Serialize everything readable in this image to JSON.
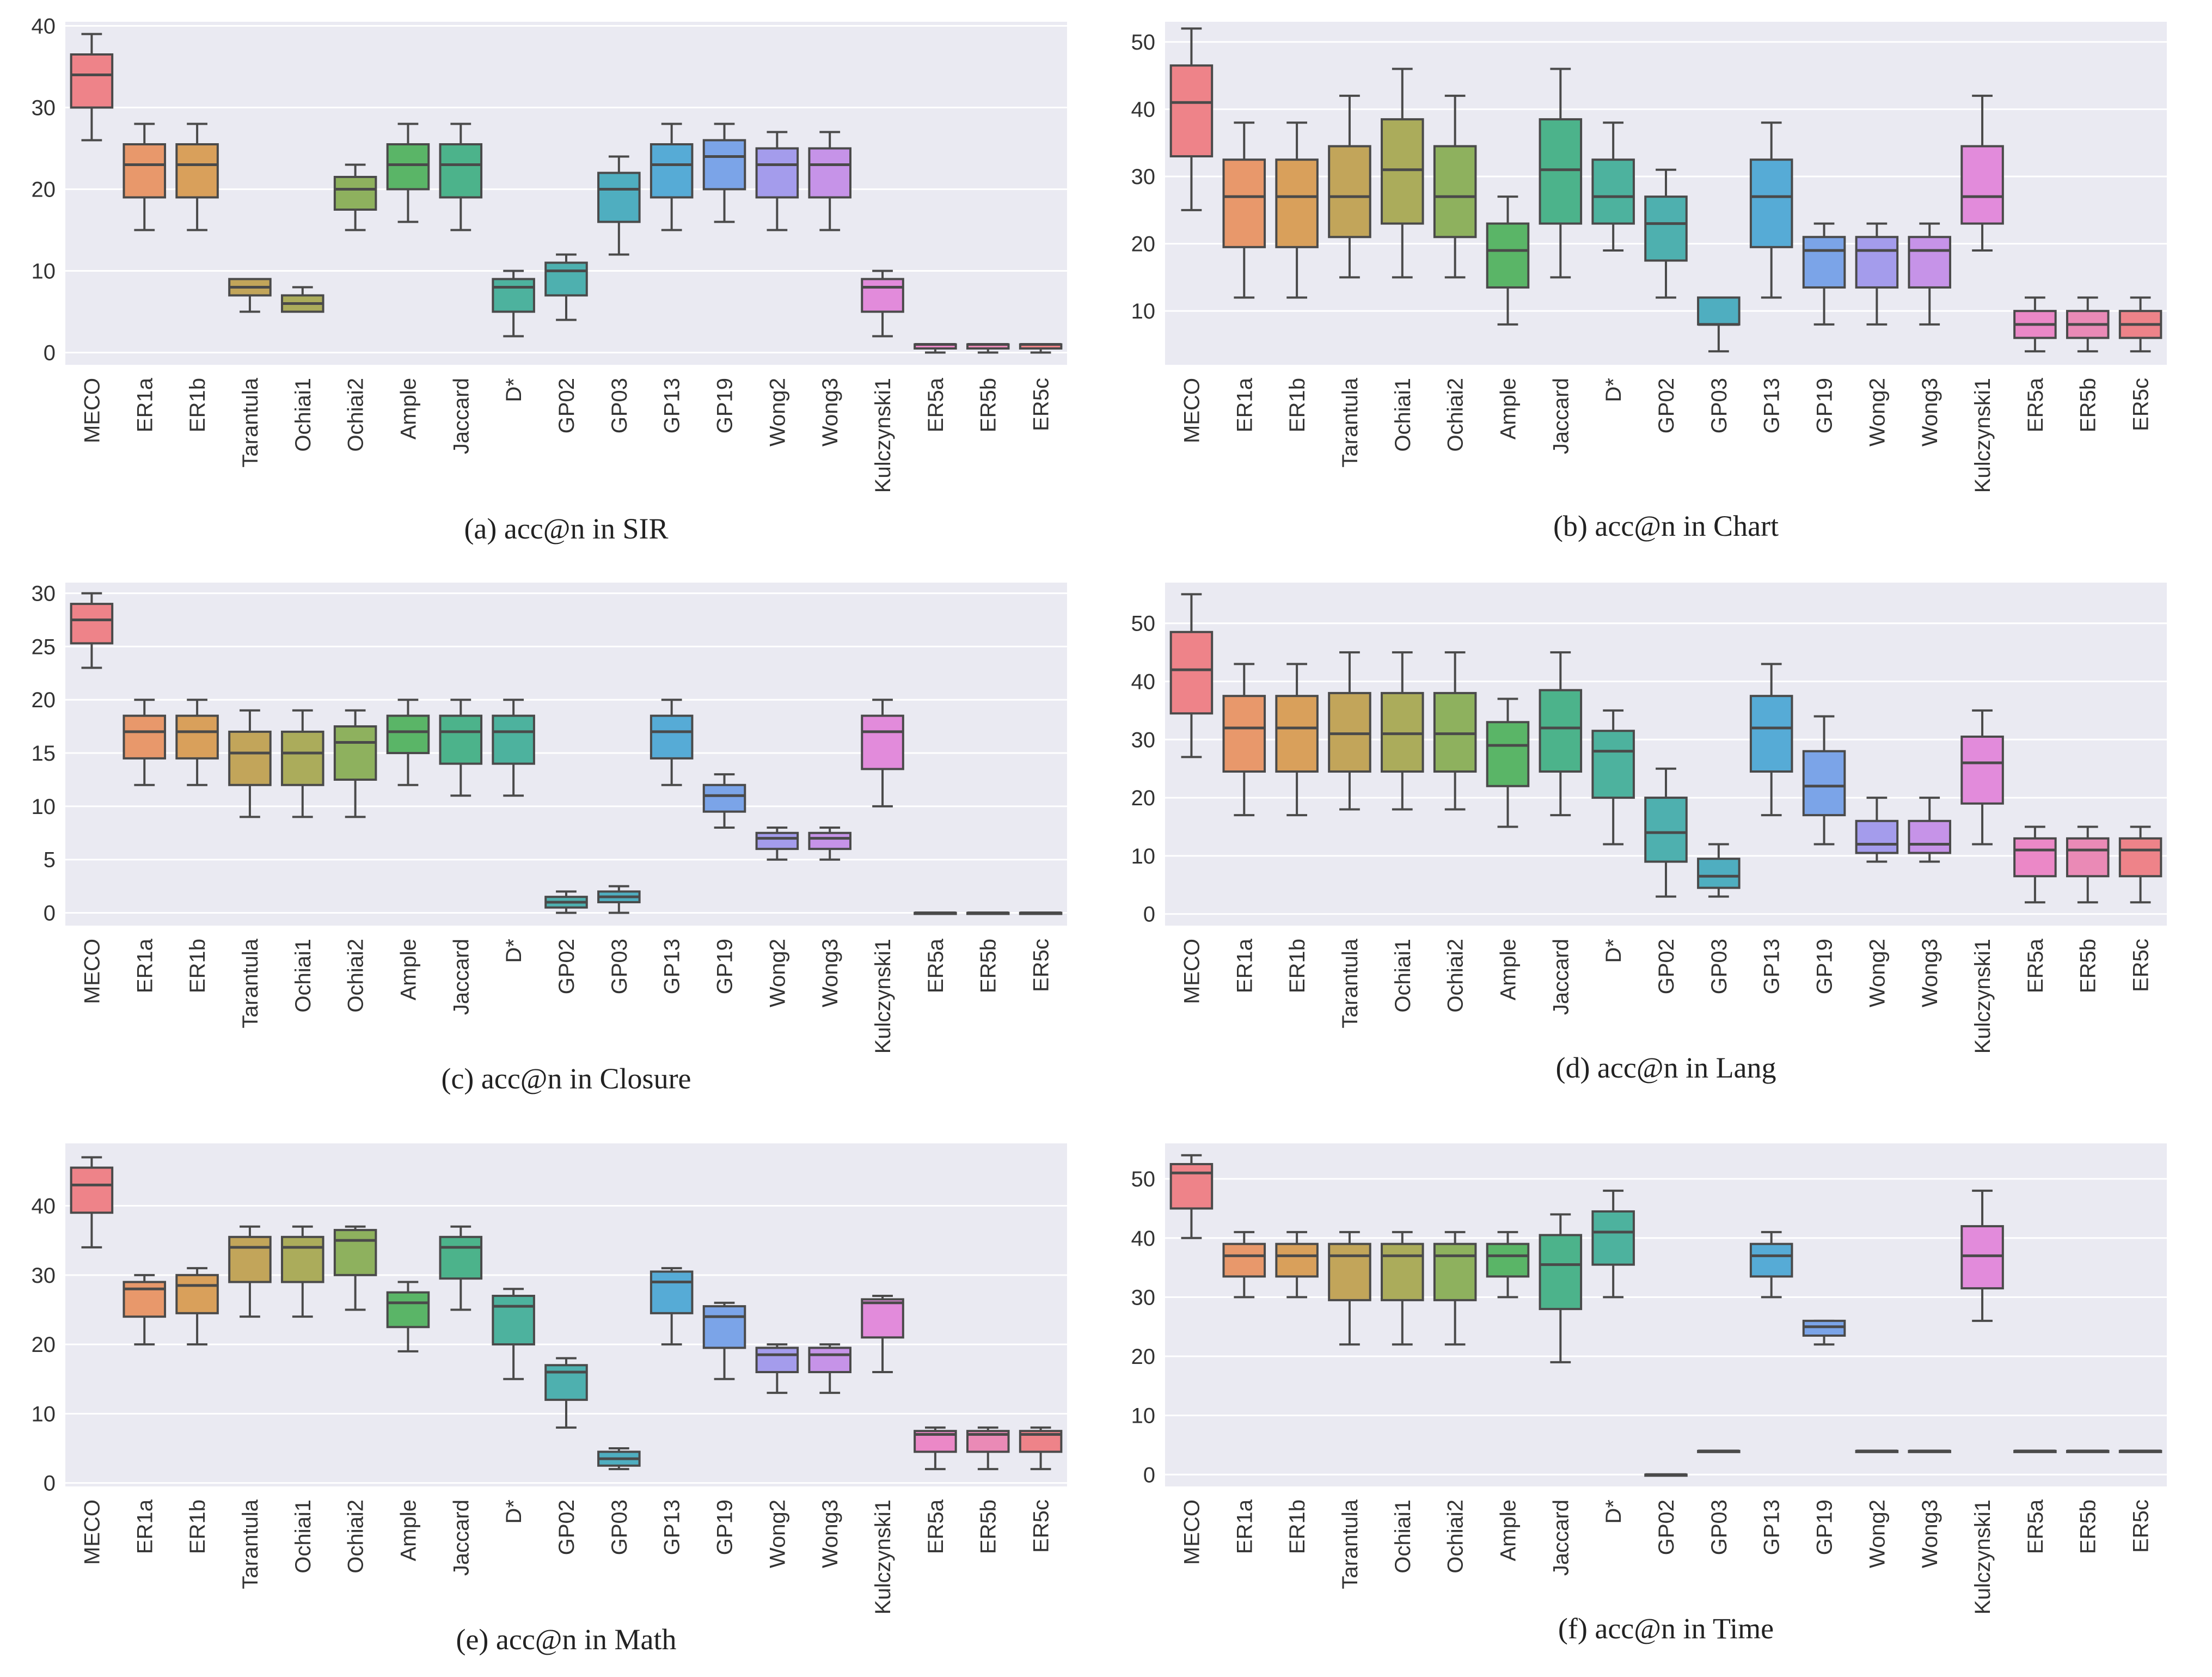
{
  "figure": {
    "colors": [
      "#EE8389",
      "#E8986B",
      "#D9A05B",
      "#C2A55A",
      "#ABAC5B",
      "#8EB15E",
      "#5AB567",
      "#4CB38B",
      "#4DB29E",
      "#4EB0AF",
      "#4FAEC0",
      "#56ABD6",
      "#7BA4E8",
      "#A49CEC",
      "#C693E8",
      "#E28BDB",
      "#EB88C7",
      "#EA8AB6"
    ],
    "plot_bg": "#EAEAF2",
    "grid": "#FFFFFF"
  },
  "chart_data": [
    {
      "type": "box",
      "id": "a",
      "caption": "(a) acc@n in SIR",
      "categories": [
        "MECO",
        "ER1a",
        "ER1b",
        "Tarantula",
        "Ochiai1",
        "Ochiai2",
        "Ample",
        "Jaccard",
        "D*",
        "GP02",
        "GP03",
        "GP13",
        "GP19",
        "Wong2",
        "Wong3",
        "Kulczynski1",
        "ER5a",
        "ER5b",
        "ER5c"
      ],
      "yticks": [
        0,
        10,
        20,
        30,
        40
      ],
      "ylim": [
        -1.5,
        40.5
      ],
      "boxes": [
        [
          26,
          30,
          34,
          36.5,
          39
        ],
        [
          15,
          19,
          23,
          25.5,
          28
        ],
        [
          15,
          19,
          23,
          25.5,
          28
        ],
        [
          5,
          7,
          8,
          9,
          9
        ],
        [
          5,
          5,
          6,
          7,
          8
        ],
        [
          15,
          17.5,
          20,
          21.5,
          23
        ],
        [
          16,
          20,
          23,
          25.5,
          28
        ],
        [
          15,
          19,
          23,
          25.5,
          28
        ],
        [
          2,
          5,
          8,
          9,
          10
        ],
        [
          4,
          7,
          10,
          11,
          12
        ],
        [
          12,
          16,
          20,
          22,
          24
        ],
        [
          15,
          19,
          23,
          25.5,
          28
        ],
        [
          16,
          20,
          24,
          26,
          28
        ],
        [
          15,
          19,
          23,
          25,
          27
        ],
        [
          15,
          19,
          23,
          25,
          27
        ],
        [
          2,
          5,
          8,
          9,
          10
        ],
        [
          0,
          0.5,
          1,
          1,
          1
        ],
        [
          0,
          0.5,
          1,
          1,
          1
        ],
        [
          0,
          0.5,
          1,
          1,
          1
        ]
      ]
    },
    {
      "type": "box",
      "id": "b",
      "caption": "(b) acc@n in Chart",
      "categories": [
        "MECO",
        "ER1a",
        "ER1b",
        "Tarantula",
        "Ochiai1",
        "Ochiai2",
        "Ample",
        "Jaccard",
        "D*",
        "GP02",
        "GP03",
        "GP13",
        "GP19",
        "Wong2",
        "Wong3",
        "Kulczynski1",
        "ER5a",
        "ER5b",
        "ER5c"
      ],
      "yticks": [
        10,
        20,
        30,
        40,
        50
      ],
      "ylim": [
        2,
        53
      ],
      "boxes": [
        [
          25,
          33,
          41,
          46.5,
          52
        ],
        [
          12,
          19.5,
          27,
          32.5,
          38
        ],
        [
          12,
          19.5,
          27,
          32.5,
          38
        ],
        [
          15,
          21,
          27,
          34.5,
          42
        ],
        [
          15,
          23,
          31,
          38.5,
          46
        ],
        [
          15,
          21,
          27,
          34.5,
          42
        ],
        [
          8,
          13.5,
          19,
          23,
          27
        ],
        [
          15,
          23,
          31,
          38.5,
          46
        ],
        [
          19,
          23,
          27,
          32.5,
          38
        ],
        [
          12,
          17.5,
          23,
          27,
          31
        ],
        [
          4,
          8,
          8,
          12,
          12
        ],
        [
          12,
          19.5,
          27,
          32.5,
          38
        ],
        [
          8,
          13.5,
          19,
          21,
          23
        ],
        [
          8,
          13.5,
          19,
          21,
          23
        ],
        [
          8,
          13.5,
          19,
          21,
          23
        ],
        [
          19,
          23,
          27,
          34.5,
          42
        ],
        [
          4,
          6,
          8,
          10,
          12
        ],
        [
          4,
          6,
          8,
          10,
          12
        ],
        [
          4,
          6,
          8,
          10,
          12
        ]
      ]
    },
    {
      "type": "box",
      "id": "c",
      "caption": "(c) acc@n in Closure",
      "categories": [
        "MECO",
        "ER1a",
        "ER1b",
        "Tarantula",
        "Ochiai1",
        "Ochiai2",
        "Ample",
        "Jaccard",
        "D*",
        "GP02",
        "GP03",
        "GP13",
        "GP19",
        "Wong2",
        "Wong3",
        "Kulczynski1",
        "ER5a",
        "ER5b",
        "ER5c"
      ],
      "yticks": [
        0,
        5,
        10,
        15,
        20,
        25,
        30
      ],
      "ylim": [
        -1.2,
        31
      ],
      "boxes": [
        [
          23,
          25.3,
          27.5,
          29,
          30
        ],
        [
          12,
          14.5,
          17,
          18.5,
          20
        ],
        [
          12,
          14.5,
          17,
          18.5,
          20
        ],
        [
          9,
          12,
          15,
          17,
          19
        ],
        [
          9,
          12,
          15,
          17,
          19
        ],
        [
          9,
          12.5,
          16,
          17.5,
          19
        ],
        [
          12,
          15,
          17,
          18.5,
          20
        ],
        [
          11,
          14,
          17,
          18.5,
          20
        ],
        [
          11,
          14,
          17,
          18.5,
          20
        ],
        [
          0,
          0.5,
          1,
          1.5,
          2
        ],
        [
          0,
          1,
          1.5,
          2,
          2.5
        ],
        [
          12,
          14.5,
          17,
          18.5,
          20
        ],
        [
          8,
          9.5,
          11,
          12,
          13
        ],
        [
          5,
          6,
          7,
          7.5,
          8
        ],
        [
          5,
          6,
          7,
          7.5,
          8
        ],
        [
          10,
          13.5,
          17,
          18.5,
          20
        ],
        [
          0,
          0,
          0,
          0,
          0
        ],
        [
          0,
          0,
          0,
          0,
          0
        ],
        [
          0,
          0,
          0,
          0,
          0
        ]
      ]
    },
    {
      "type": "box",
      "id": "d",
      "caption": "(d) acc@n in Lang",
      "categories": [
        "MECO",
        "ER1a",
        "ER1b",
        "Tarantula",
        "Ochiai1",
        "Ochiai2",
        "Ample",
        "Jaccard",
        "D*",
        "GP02",
        "GP03",
        "GP13",
        "GP19",
        "Wong2",
        "Wong3",
        "Kulczynski1",
        "ER5a",
        "ER5b",
        "ER5c"
      ],
      "yticks": [
        0,
        10,
        20,
        30,
        40,
        50
      ],
      "ylim": [
        -2,
        57
      ],
      "boxes": [
        [
          27,
          34.5,
          42,
          48.5,
          55
        ],
        [
          17,
          24.5,
          32,
          37.5,
          43
        ],
        [
          17,
          24.5,
          32,
          37.5,
          43
        ],
        [
          18,
          24.5,
          31,
          38,
          45
        ],
        [
          18,
          24.5,
          31,
          38,
          45
        ],
        [
          18,
          24.5,
          31,
          38,
          45
        ],
        [
          15,
          22,
          29,
          33,
          37
        ],
        [
          17,
          24.5,
          32,
          38.5,
          45
        ],
        [
          12,
          20,
          28,
          31.5,
          35
        ],
        [
          3,
          9,
          14,
          20,
          25
        ],
        [
          3,
          4.5,
          6.5,
          9.5,
          12
        ],
        [
          17,
          24.5,
          32,
          37.5,
          43
        ],
        [
          12,
          17,
          22,
          28,
          34
        ],
        [
          9,
          10.5,
          12,
          16,
          20
        ],
        [
          9,
          10.5,
          12,
          16,
          20
        ],
        [
          12,
          19,
          26,
          30.5,
          35
        ],
        [
          2,
          6.5,
          11,
          13,
          15
        ],
        [
          2,
          6.5,
          11,
          13,
          15
        ],
        [
          2,
          6.5,
          11,
          13,
          15
        ]
      ]
    },
    {
      "type": "box",
      "id": "e",
      "caption": "(e) acc@n in Math",
      "categories": [
        "MECO",
        "ER1a",
        "ER1b",
        "Tarantula",
        "Ochiai1",
        "Ochiai2",
        "Ample",
        "Jaccard",
        "D*",
        "GP02",
        "GP03",
        "GP13",
        "GP19",
        "Wong2",
        "Wong3",
        "Kulczynski1",
        "ER5a",
        "ER5b",
        "ER5c"
      ],
      "yticks": [
        0,
        10,
        20,
        30,
        40
      ],
      "ylim": [
        -0.5,
        49
      ],
      "boxes": [
        [
          34,
          39,
          43,
          45.5,
          47
        ],
        [
          20,
          24,
          28,
          29,
          30
        ],
        [
          20,
          24.5,
          28.5,
          30,
          31
        ],
        [
          24,
          29,
          34,
          35.5,
          37
        ],
        [
          24,
          29,
          34,
          35.5,
          37
        ],
        [
          25,
          30,
          35,
          36.5,
          37
        ],
        [
          19,
          22.5,
          26,
          27.5,
          29
        ],
        [
          25,
          29.5,
          34,
          35.5,
          37
        ],
        [
          15,
          20,
          25.5,
          27,
          28
        ],
        [
          8,
          12,
          16,
          17,
          18
        ],
        [
          2,
          2.5,
          3.5,
          4.5,
          5
        ],
        [
          20,
          24.5,
          29,
          30.5,
          31
        ],
        [
          15,
          19.5,
          24,
          25.5,
          26
        ],
        [
          13,
          16,
          18.5,
          19.5,
          20
        ],
        [
          13,
          16,
          18.5,
          19.5,
          20
        ],
        [
          16,
          21,
          26,
          26.5,
          27
        ],
        [
          2,
          4.5,
          7,
          7.5,
          8
        ],
        [
          2,
          4.5,
          7,
          7.5,
          8
        ],
        [
          2,
          4.5,
          7,
          7.5,
          8
        ]
      ]
    },
    {
      "type": "box",
      "id": "f",
      "caption": "(f) acc@n in Time",
      "categories": [
        "MECO",
        "ER1a",
        "ER1b",
        "Tarantula",
        "Ochiai1",
        "Ochiai2",
        "Ample",
        "Jaccard",
        "D*",
        "GP02",
        "GP03",
        "GP13",
        "GP19",
        "Wong2",
        "Wong3",
        "Kulczynski1",
        "ER5a",
        "ER5b",
        "ER5c"
      ],
      "yticks": [
        0,
        10,
        20,
        30,
        40,
        50
      ],
      "ylim": [
        -2,
        56
      ],
      "boxes": [
        [
          40,
          45,
          51,
          52.5,
          54
        ],
        [
          30,
          33.5,
          37,
          39,
          41
        ],
        [
          30,
          33.5,
          37,
          39,
          41
        ],
        [
          22,
          29.5,
          37,
          39,
          41
        ],
        [
          22,
          29.5,
          37,
          39,
          41
        ],
        [
          22,
          29.5,
          37,
          39,
          41
        ],
        [
          30,
          33.5,
          37,
          39,
          41
        ],
        [
          19,
          28,
          35.5,
          40.5,
          44
        ],
        [
          30,
          35.5,
          41,
          44.5,
          48
        ],
        [
          0,
          0,
          0,
          0,
          0
        ],
        [
          4,
          4,
          4,
          4,
          4
        ],
        [
          30,
          33.5,
          37,
          39,
          41
        ],
        [
          22,
          23.5,
          25,
          26,
          26
        ],
        [
          4,
          4,
          4,
          4,
          4
        ],
        [
          4,
          4,
          4,
          4,
          4
        ],
        [
          26,
          31.5,
          37,
          42,
          48
        ],
        [
          4,
          4,
          4,
          4,
          4
        ],
        [
          4,
          4,
          4,
          4,
          4
        ],
        [
          4,
          4,
          4,
          4,
          4
        ]
      ]
    }
  ]
}
